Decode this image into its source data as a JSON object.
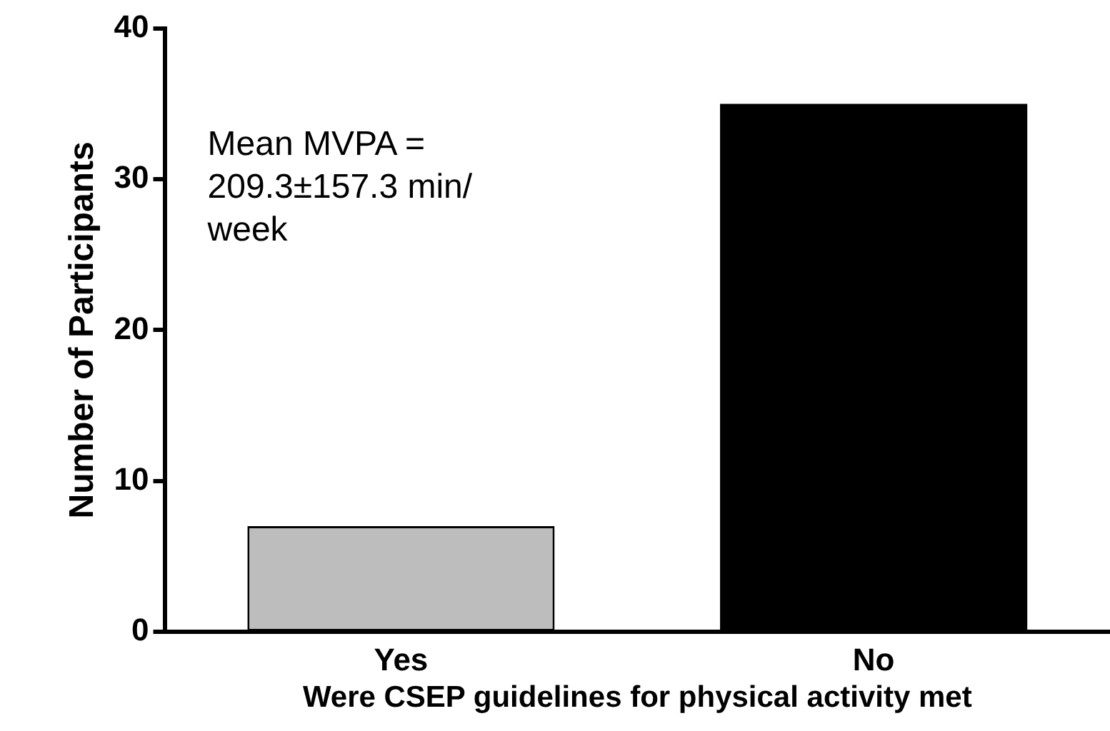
{
  "chart_data": {
    "type": "bar",
    "ylabel": "Number of Participants",
    "xlabel": "Were CSEP guidelines for physical activity met",
    "categories": [
      "Yes",
      "No"
    ],
    "values": [
      7,
      35
    ],
    "colors": [
      "#bdbdbd",
      "#000000"
    ],
    "ylim": [
      0,
      40
    ],
    "yticks": [
      0,
      10,
      20,
      30,
      40
    ],
    "grid": false,
    "legend": false,
    "annotations": [
      "Mean MVPA =\n209.3±157.3 min/\nweek"
    ]
  }
}
